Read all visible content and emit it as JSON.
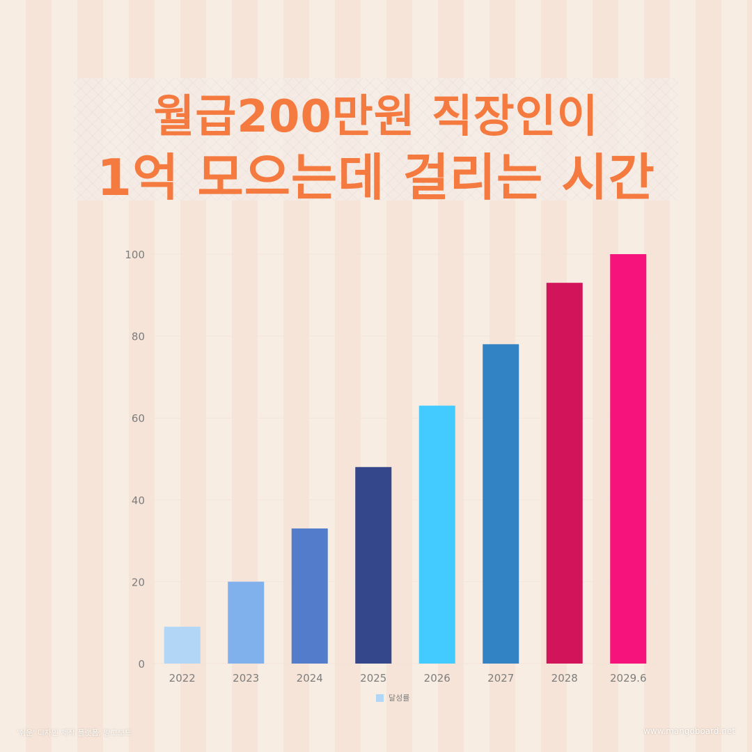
{
  "header": {
    "title_line1": "월급200만원 직장인이",
    "title_line2": "1억 모으는데 걸리는 시간"
  },
  "chart_data": {
    "type": "bar",
    "categories": [
      "2022",
      "2023",
      "2024",
      "2025",
      "2026",
      "2027",
      "2028",
      "2029.6"
    ],
    "series": [
      {
        "name": "달성률",
        "values": [
          9,
          20,
          33,
          48,
          63,
          78,
          93,
          100
        ]
      }
    ],
    "bar_colors": [
      "#b2d6f6",
      "#80b1ec",
      "#537dcb",
      "#33478a",
      "#43cbff",
      "#3283c3",
      "#d2155b",
      "#f6137b"
    ],
    "ylim": [
      0,
      100
    ],
    "yticks": [
      0,
      20,
      40,
      60,
      80,
      100
    ],
    "grid": true,
    "legend": "bottom-center",
    "title": "",
    "xlabel": "",
    "ylabel": ""
  },
  "footer": {
    "left_text": "'쉬운' 디자인 제작 플랫폼, 망고보드",
    "right_text": "www.mangoboard.net"
  }
}
